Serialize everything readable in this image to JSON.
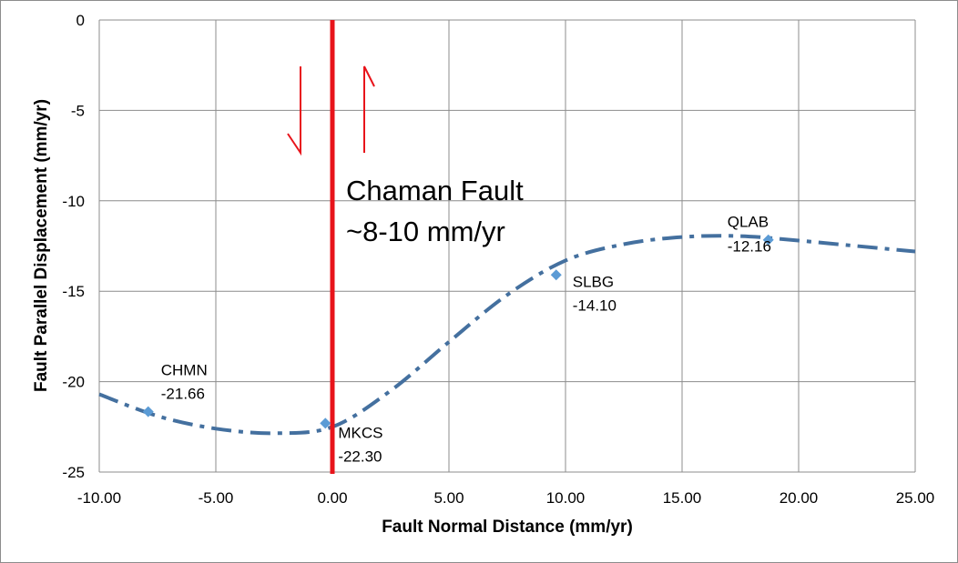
{
  "chart_data": {
    "type": "scatter",
    "title": "",
    "xlabel": "Fault Normal Distance (mm/yr)",
    "ylabel": "Fault Parallel Displacement (mm/yr)",
    "xlim": [
      -10,
      25
    ],
    "ylim": [
      -25,
      0
    ],
    "x_ticks": [
      "-10.00",
      "-5.00",
      "0.00",
      "5.00",
      "10.00",
      "15.00",
      "20.00",
      "25.00"
    ],
    "y_ticks": [
      "0",
      "-5",
      "-10",
      "-15",
      "-20",
      "-25"
    ],
    "grid": true,
    "legend": "none",
    "points": [
      {
        "station": "CHMN",
        "x": -7.9,
        "y": -21.66,
        "value_label": "-21.66"
      },
      {
        "station": "MKCS",
        "x": -0.3,
        "y": -22.3,
        "value_label": "-22.30"
      },
      {
        "station": "SLBG",
        "x": 9.6,
        "y": -14.1,
        "value_label": "-14.10"
      },
      {
        "station": "QLAB",
        "x": 18.7,
        "y": -12.16,
        "value_label": "-12.16"
      }
    ],
    "fit_curve": {
      "style": "dash-dot",
      "color": "#44709F",
      "x": [
        -10,
        -7.5,
        -5,
        -2.5,
        0,
        2.5,
        5,
        7.5,
        10,
        12.5,
        15,
        17.5,
        20,
        22.5,
        25
      ],
      "y": [
        -20.7,
        -21.9,
        -22.6,
        -22.85,
        -22.5,
        -20.5,
        -17.8,
        -15.2,
        -13.3,
        -12.4,
        -12.0,
        -11.95,
        -12.2,
        -12.5,
        -12.8
      ]
    },
    "fault": {
      "x": 0,
      "label_line1": "Chaman Fault",
      "label_line2": "~8-10 mm/yr",
      "color": "#E8141B"
    },
    "colors": {
      "marker": "#5B9BD5",
      "gridline": "#8C8C8C"
    }
  }
}
